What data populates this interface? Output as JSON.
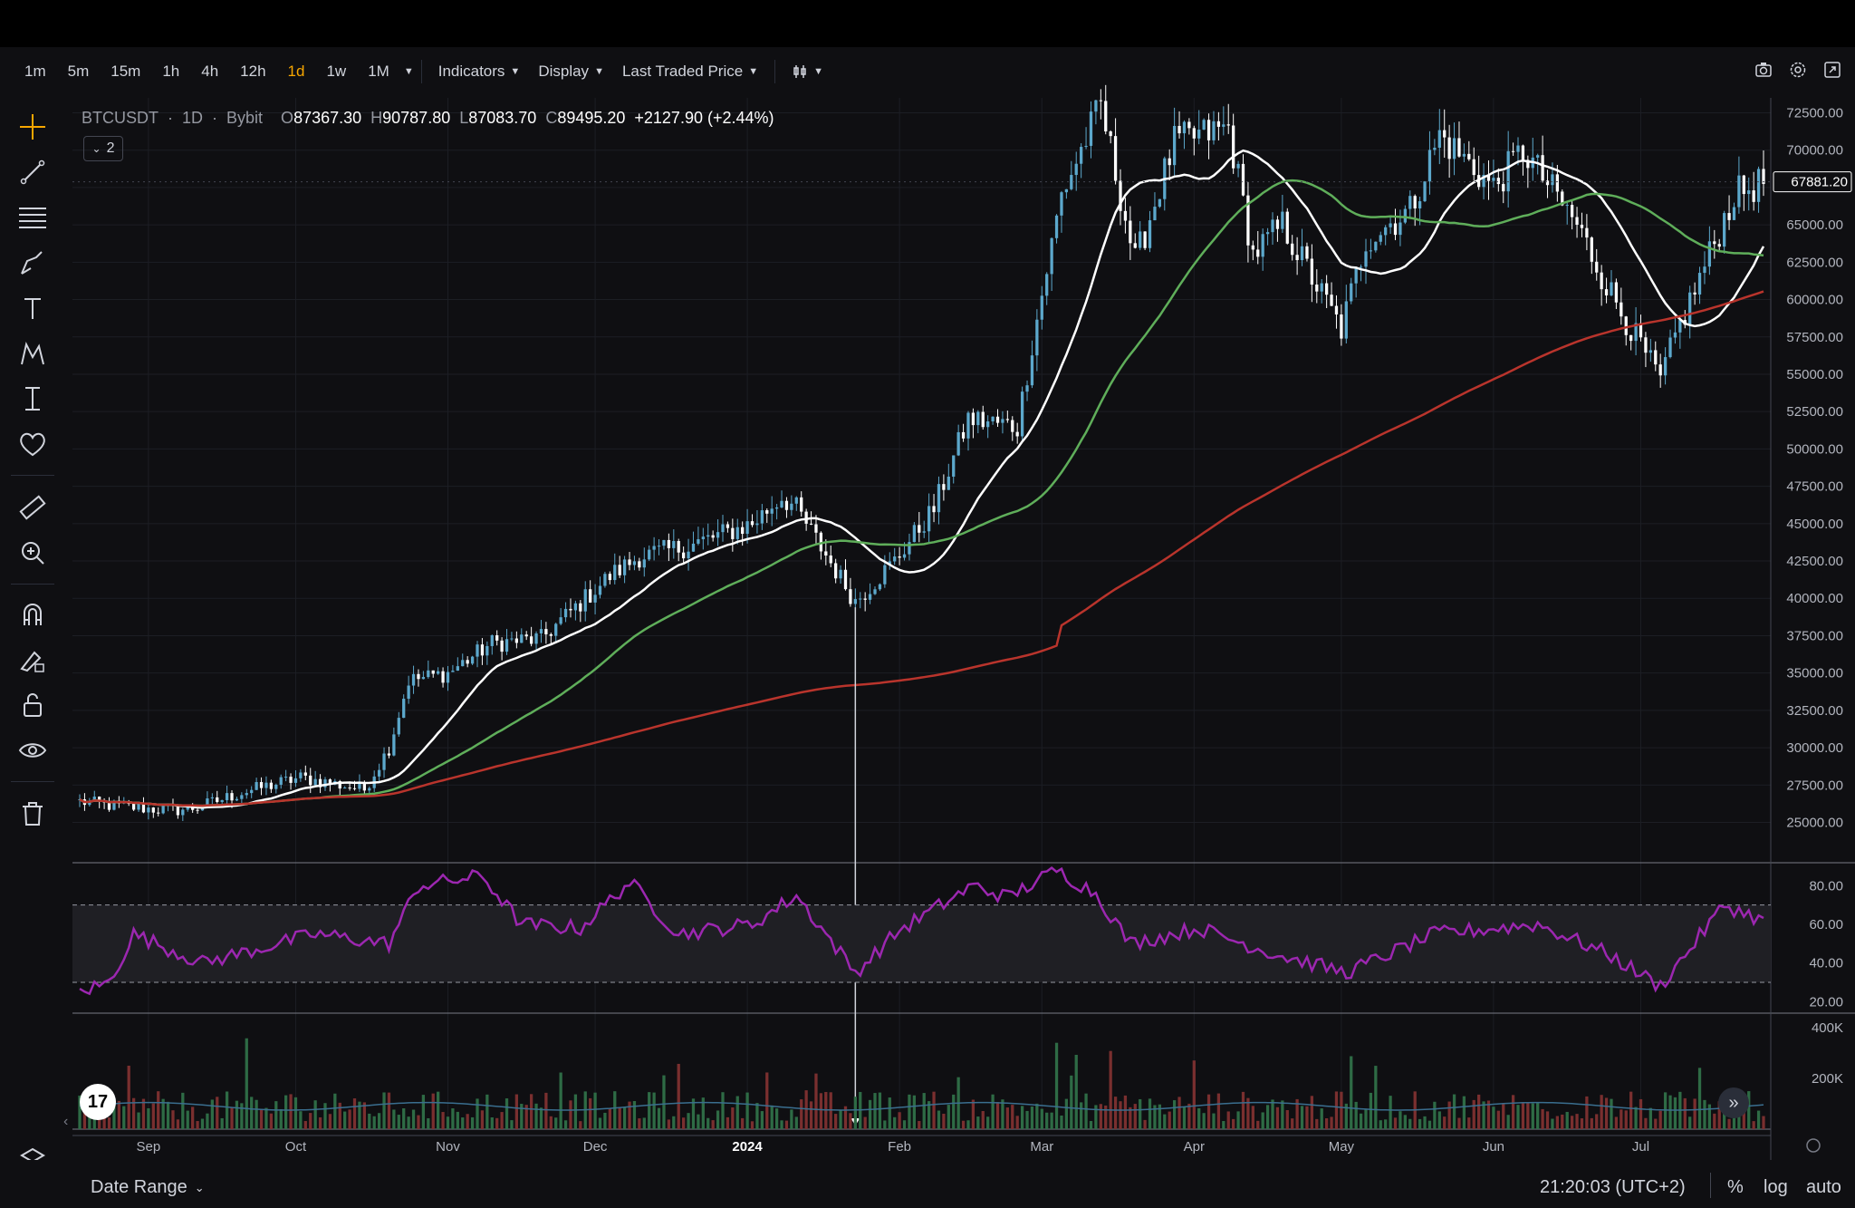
{
  "toolbar": {
    "timeframes": [
      "1m",
      "5m",
      "15m",
      "1h",
      "4h",
      "12h",
      "1d",
      "1w",
      "1M"
    ],
    "active_timeframe": "1d",
    "indicators_label": "Indicators",
    "display_label": "Display",
    "price_type_label": "Last Traded Price"
  },
  "legend": {
    "symbol": "BTCUSDT",
    "interval": "1D",
    "exchange": "Bybit",
    "o_label": "O",
    "o": "87367.30",
    "h_label": "H",
    "h": "90787.80",
    "l_label": "L",
    "l": "87083.70",
    "c_label": "C",
    "c": "89495.20",
    "change": "+2127.90 (+2.44%)",
    "collapsed_count": "2"
  },
  "bottom": {
    "date_range": "Date Range",
    "clock": "21:20:03 (UTC+2)",
    "percent": "%",
    "log": "log",
    "auto": "auto"
  },
  "colors": {
    "up": "#5ca8cc",
    "down": "#ffffff",
    "ma_fast": "#ffffff",
    "ma_mid": "#5fae5a",
    "ma_slow": "#b9342c",
    "rsi": "#9c27b0",
    "vol_up": "#2e6b45",
    "vol_down": "#7a2f2f",
    "active": "#f7a600"
  },
  "chart_data": [
    {
      "type": "candlestick",
      "panel": "price",
      "title": "BTCUSDT · 1D · Bybit",
      "y_ticks": [
        "72500.00",
        "70000.00",
        "67500.00",
        "65000.00",
        "62500.00",
        "60000.00",
        "57500.00",
        "55000.00",
        "52500.00",
        "50000.00",
        "47500.00",
        "45000.00",
        "42500.00",
        "40000.00",
        "37500.00",
        "35000.00",
        "32500.00",
        "30000.00",
        "27500.00",
        "25000.00"
      ],
      "ylim": [
        24000,
        73500
      ],
      "last_price_label": "67881.20",
      "last_price": 67881.2,
      "x_ticks": [
        "Sep",
        "Oct",
        "Nov",
        "Dec",
        "2024",
        "Feb",
        "Mar",
        "Apr",
        "May",
        "Jun",
        "Jul"
      ],
      "x_tick_dates": [
        "2023-09-01",
        "2023-10-01",
        "2023-11-01",
        "2023-12-01",
        "2024-01-01",
        "2024-02-01",
        "2024-03-01",
        "2024-04-01",
        "2024-05-01",
        "2024-06-01",
        "2024-07-01"
      ],
      "x_range": [
        "2023-08-18",
        "2024-07-26"
      ],
      "anchors_date": [
        "2023-08-18",
        "2023-08-25",
        "2023-09-06",
        "2023-09-11",
        "2023-09-20",
        "2023-10-02",
        "2023-10-15",
        "2023-10-20",
        "2023-10-24",
        "2023-11-01",
        "2023-11-10",
        "2023-11-20",
        "2023-12-04",
        "2023-12-10",
        "2023-12-20",
        "2024-01-02",
        "2024-01-08",
        "2024-01-11",
        "2024-01-23",
        "2024-01-31",
        "2024-02-08",
        "2024-02-15",
        "2024-02-25",
        "2024-02-28",
        "2024-03-05",
        "2024-03-13",
        "2024-03-20",
        "2024-03-28",
        "2024-04-08",
        "2024-04-13",
        "2024-04-19",
        "2024-05-01",
        "2024-05-06",
        "2024-05-15",
        "2024-05-21",
        "2024-06-01",
        "2024-06-07",
        "2024-06-18",
        "2024-06-24",
        "2024-07-05",
        "2024-07-08",
        "2024-07-15",
        "2024-07-20",
        "2024-07-26"
      ],
      "anchors_price": [
        26400,
        26100,
        25800,
        26000,
        27000,
        28000,
        27200,
        30000,
        34500,
        35000,
        37000,
        37300,
        41500,
        42800,
        43500,
        45000,
        46800,
        46000,
        39800,
        42500,
        46000,
        52000,
        51500,
        57000,
        67000,
        73000,
        62500,
        70500,
        71500,
        63000,
        65000,
        58000,
        64000,
        66000,
        71000,
        67500,
        70000,
        65000,
        61000,
        54500,
        57500,
        63000,
        67000,
        67881
      ],
      "moving_averages": [
        {
          "window": 20,
          "color": "#ffffff"
        },
        {
          "window": 50,
          "color": "#5fae5a"
        },
        {
          "window": 200,
          "color": "#b9342c"
        }
      ]
    },
    {
      "type": "line",
      "panel": "rsi",
      "y_ticks": [
        "80.00",
        "60.00",
        "40.00",
        "20.00"
      ],
      "ylim": [
        15,
        90
      ],
      "bands": [
        30,
        70
      ],
      "anchors_date": [
        "2023-08-18",
        "2023-08-24",
        "2023-08-29",
        "2023-09-12",
        "2023-10-05",
        "2023-10-20",
        "2023-10-26",
        "2023-11-08",
        "2023-11-16",
        "2023-11-28",
        "2023-12-08",
        "2023-12-18",
        "2024-01-02",
        "2024-01-11",
        "2024-01-23",
        "2024-02-01",
        "2024-02-16",
        "2024-02-23",
        "2024-03-04",
        "2024-03-12",
        "2024-03-19",
        "2024-04-02",
        "2024-04-17",
        "2024-05-02",
        "2024-05-20",
        "2024-06-10",
        "2024-06-24",
        "2024-07-05",
        "2024-07-18",
        "2024-07-26"
      ],
      "anchors_value": [
        25,
        30,
        55,
        40,
        55,
        50,
        80,
        85,
        60,
        58,
        82,
        55,
        60,
        75,
        35,
        57,
        80,
        74,
        88,
        76,
        50,
        58,
        45,
        35,
        55,
        60,
        45,
        28,
        70,
        62
      ]
    },
    {
      "type": "bar",
      "panel": "volume",
      "y_ticks": [
        "400K",
        "200K"
      ],
      "ylim": [
        0,
        450000
      ]
    }
  ]
}
